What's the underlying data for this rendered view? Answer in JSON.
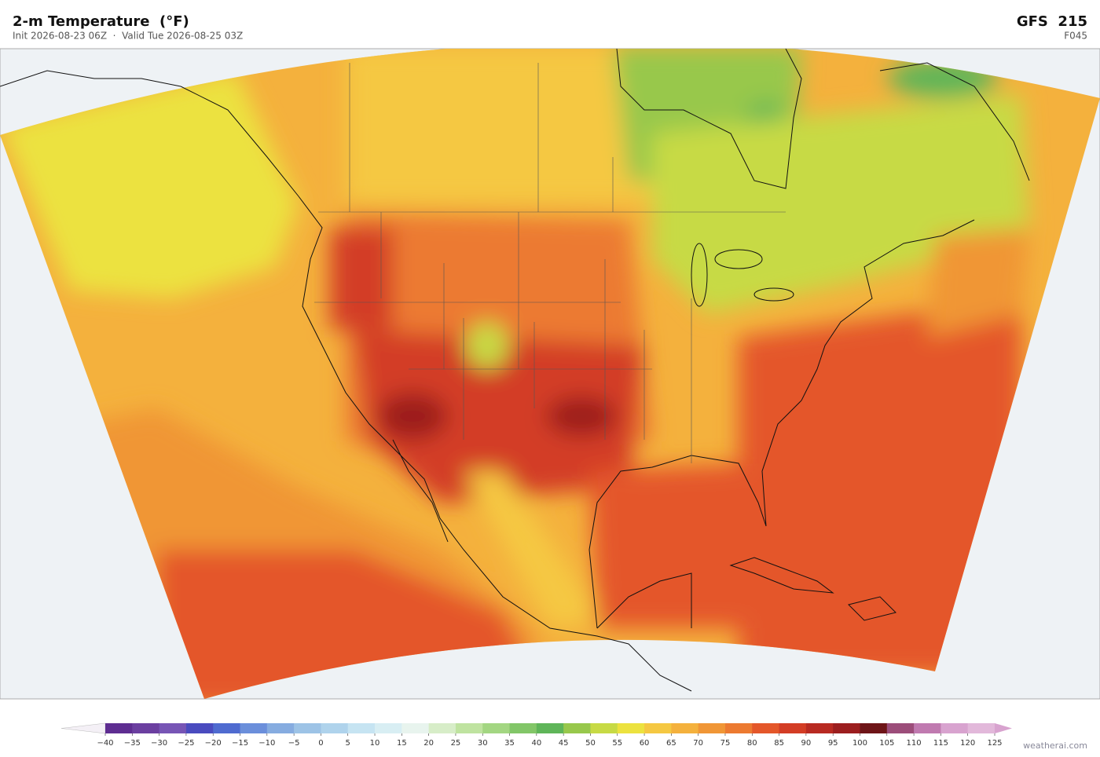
{
  "header": {
    "title": "2-m Temperature  (°F)",
    "subtitle": "Init 2026-08-23 06Z  ·  Valid Tue 2026-08-25 03Z",
    "model": "GFS  215",
    "forecast_hour": "F045"
  },
  "colorbar": {
    "ticks": [
      {
        "value": -40,
        "label": "−40"
      },
      {
        "value": -35,
        "label": "−35"
      },
      {
        "value": -30,
        "label": "−30"
      },
      {
        "value": -25,
        "label": "−25"
      },
      {
        "value": -20,
        "label": "−20"
      },
      {
        "value": -15,
        "label": "−15"
      },
      {
        "value": -10,
        "label": "−10"
      },
      {
        "value": -5,
        "label": "−5"
      },
      0,
      5,
      10,
      15,
      20,
      25,
      30,
      35,
      40,
      45,
      50,
      55,
      60,
      65,
      70,
      75,
      80,
      85,
      90,
      95,
      100,
      105,
      110,
      115,
      120,
      125
    ],
    "colors": [
      "#5e2d91",
      "#6b3fa0",
      "#7755b5",
      "#4a4bbf",
      "#4f6bd0",
      "#6b8fdb",
      "#86ace0",
      "#9dc3e6",
      "#afd3ec",
      "#c6e4f2",
      "#d8eef3",
      "#e8f4ee",
      "#d7edc8",
      "#bfe3a0",
      "#a3d682",
      "#82c668",
      "#5fb559",
      "#98c84c",
      "#c7da45",
      "#ece23f",
      "#f5c842",
      "#f4b13d",
      "#f09636",
      "#ec7a31",
      "#e4572a",
      "#d33d25",
      "#b82a22",
      "#9c1e1f",
      "#6e1518",
      "#9c4d7a",
      "#c07ab0",
      "#d8a3cf",
      "#e2b8da"
    ],
    "under_color": "#f4f0f6",
    "over_color": "#d8a3cf"
  },
  "watermark": "weatherai.com"
}
